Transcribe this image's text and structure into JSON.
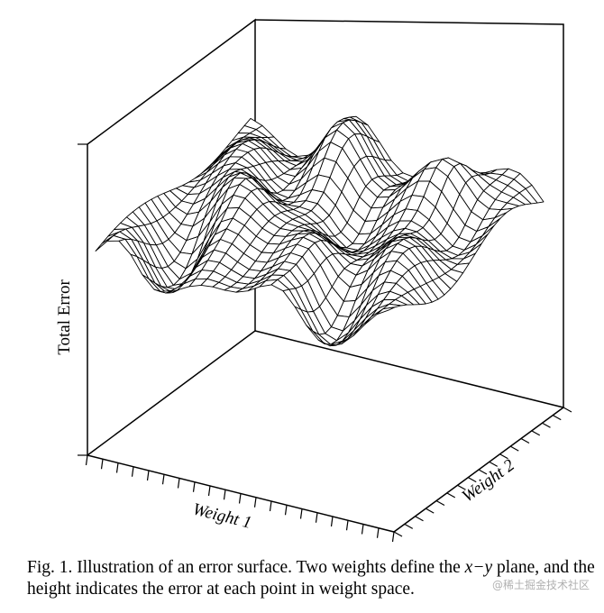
{
  "chart_data": {
    "type": "surface",
    "zlabel": "Total Error",
    "xlabel": "Weight 1",
    "ylabel": "Weight 2",
    "grid": false,
    "legend": "none"
  },
  "caption": {
    "label": "Fig. 1.",
    "text_before": "Illustration of an error surface. Two weights define the",
    "math": "x−y",
    "text_after": "plane, and the height indicates the error at each point in weight space."
  },
  "watermark": "@稀土掘金技术社区"
}
